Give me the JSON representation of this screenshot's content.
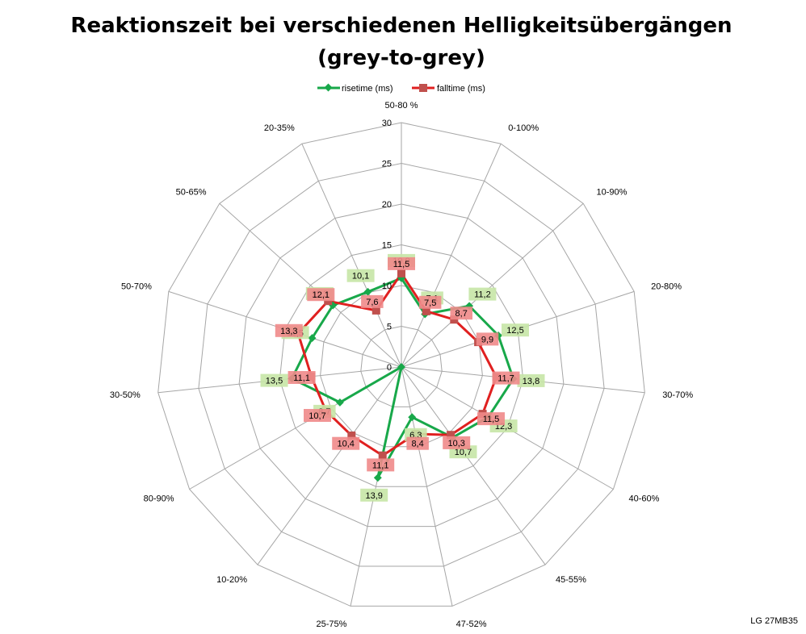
{
  "chart_data": {
    "type": "radar",
    "title_line1": "Reaktionszeit bei verschiedenen Helligkeitsübergängen",
    "title_line2": "(grey-to-grey)",
    "categories": [
      "50-80 %",
      "0-100%",
      "10-90%",
      "20-80%",
      "30-70%",
      "40-60%",
      "45-55%",
      "47-52%",
      "25-75%",
      "10-20%",
      "80-90%",
      "30-50%",
      "50-70%",
      "50-65%",
      "20-35%"
    ],
    "ticks": [
      "0",
      "5",
      "10",
      "15",
      "20",
      "25",
      "30"
    ],
    "rmax": 30,
    "series": [
      {
        "name": "risetime (ms)",
        "color": "#18a84a",
        "label_bg": "#c6e6a6",
        "values": [
          10.9,
          7.1,
          11.2,
          12.5,
          13.8,
          12.3,
          10.7,
          6.3,
          13.9,
          0,
          8.7,
          13.5,
          11.5,
          11.3,
          10.1
        ],
        "labels": [
          "10,9",
          "7,1",
          "11,2",
          "12,5",
          "13,8",
          "12,3",
          "10,7",
          "6,3",
          "13,9",
          "",
          "8,7",
          "13,5",
          "11,5",
          "11,3",
          "10,1"
        ]
      },
      {
        "name": "falltime (ms)",
        "color": "#e02020",
        "label_bg": "#f08a8a",
        "values": [
          11.5,
          7.5,
          8.7,
          9.9,
          11.7,
          11.5,
          10.3,
          8.4,
          11.1,
          10.4,
          10.7,
          11.1,
          13.3,
          12.1,
          7.6
        ],
        "labels": [
          "11,5",
          "7,5",
          "8,7",
          "9,9",
          "11,7",
          "11,5",
          "10,3",
          "8,4",
          "11,1",
          "10,4",
          "10,7",
          "11,1",
          "13,3",
          "12,1",
          "7,6"
        ]
      }
    ],
    "legend_position": "top",
    "grid": true
  },
  "credit": "LG 27MB35"
}
